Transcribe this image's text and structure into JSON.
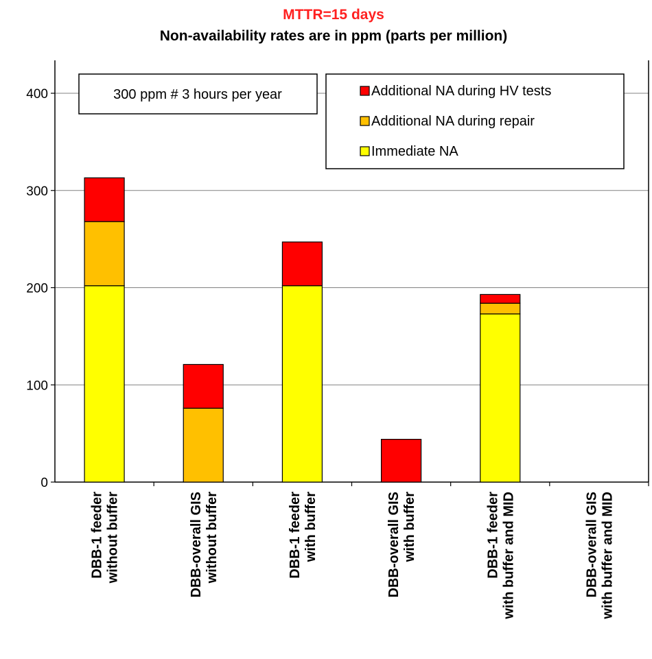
{
  "chart_data": {
    "type": "bar",
    "stacked": true,
    "title": "MTTR=15 days",
    "subtitle": "Non-availability rates are in ppm (parts per million)",
    "title_color": "#ff2020",
    "annotation": "300 ppm # 3 hours per year",
    "categories": [
      [
        "DBB-1 feeder",
        "without buffer"
      ],
      [
        "DBB-overall GIS",
        "without buffer"
      ],
      [
        "DBB-1 feeder",
        "with buffer"
      ],
      [
        "DBB-overall GIS",
        "with buffer"
      ],
      [
        "DBB-1 feeder",
        "with buffer and MID"
      ],
      [
        "DBB-overall GIS",
        "with buffer and MID"
      ]
    ],
    "series": [
      {
        "name": "Immediate NA",
        "color": "#ffff00",
        "values": [
          202,
          0,
          202,
          0,
          173,
          0
        ]
      },
      {
        "name": "Additional NA during repair",
        "color": "#ffc000",
        "values": [
          66,
          76,
          0,
          0,
          11,
          0
        ]
      },
      {
        "name": "Additional NA during HV tests",
        "color": "#ff0000",
        "values": [
          45,
          45,
          45,
          44,
          9,
          0
        ]
      }
    ],
    "legend_order": [
      2,
      1,
      0
    ],
    "ylim": [
      0,
      400
    ],
    "yticks": [
      0,
      100,
      200,
      300,
      400
    ],
    "grid": true,
    "legend_position": "top-right"
  }
}
